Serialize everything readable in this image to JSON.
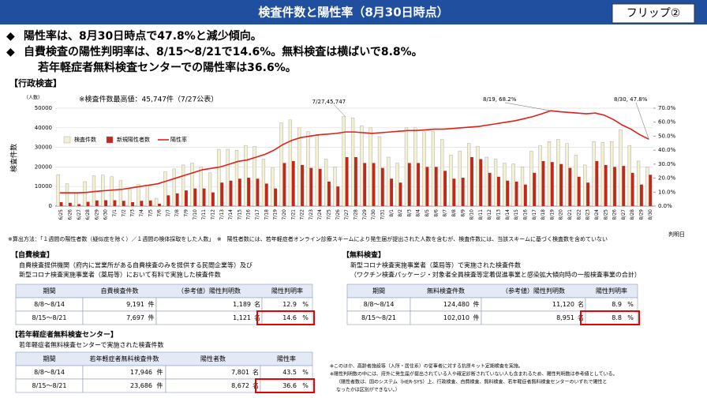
{
  "header": {
    "title": "検査件数と陽性率（8月30日時点）",
    "flip": "フリップ②"
  },
  "bullets": [
    "陽性率は、8月30日時点で47.8%と減少傾向。",
    "自費検査の陽性判明率は、8/15～8/21で14.6%。無料検査は横ばいで8.8%。",
    "若年軽症者無料検査センターでの陽性率は36.6%。"
  ],
  "section": "【行政検査】",
  "chart_data": {
    "type": "bar_line",
    "y_unit": "（人数）",
    "ylabel": "検査件数",
    "xlabel": "判明日",
    "note": "※検査件数最高値：45,747件（7/27公表）",
    "annotations": [
      "7/27,45,747",
      "8/19, 68.2%",
      "8/30, 47.8%"
    ],
    "categories": [
      "6/25",
      "6/26",
      "6/27",
      "6/28",
      "6/29",
      "6/30",
      "7/1",
      "7/2",
      "7/3",
      "7/4",
      "7/5",
      "7/6",
      "7/7",
      "7/8",
      "7/9",
      "7/10",
      "7/11",
      "7/12",
      "7/13",
      "7/14",
      "7/15",
      "7/16",
      "7/17",
      "7/18",
      "7/19",
      "7/20",
      "7/21",
      "7/22",
      "7/23",
      "7/24",
      "7/25",
      "7/26",
      "7/27",
      "7/28",
      "7/29",
      "7/30",
      "7/31",
      "8/1",
      "8/2",
      "8/3",
      "8/4",
      "8/5",
      "8/6",
      "8/7",
      "8/8",
      "8/9",
      "8/10",
      "8/11",
      "8/12",
      "8/13",
      "8/14",
      "8/15",
      "8/16",
      "8/17",
      "8/18",
      "8/19",
      "8/20",
      "8/21",
      "8/22",
      "8/23",
      "8/24",
      "8/25",
      "8/26",
      "8/27",
      "8/28",
      "8/29",
      "8/30"
    ],
    "series": [
      {
        "name": "検査件数",
        "color": "#f4f0d2",
        "values": [
          16000,
          11500,
          7000,
          12500,
          15500,
          15800,
          15000,
          13000,
          8500,
          11000,
          10500,
          4000,
          17500,
          19000,
          21000,
          22000,
          20000,
          17000,
          29000,
          29000,
          28500,
          31000,
          30500,
          24000,
          19500,
          42500,
          44000,
          40000,
          38000,
          36000,
          24000,
          20000,
          45747,
          45000,
          41000,
          40000,
          35500,
          25000,
          22000,
          40000,
          40000,
          38000,
          38000,
          34000,
          26000,
          28000,
          32000,
          30500,
          25000,
          24000,
          22000,
          21500,
          20000,
          28000,
          31000,
          33000,
          34000,
          32000,
          26000,
          21000,
          33000,
          32500,
          33000,
          39000,
          31000,
          23000,
          20000
        ]
      },
      {
        "name": "新規陽性者数",
        "color": "#c0281e",
        "values": [
          2000,
          1700,
          1000,
          2200,
          2900,
          3000,
          3000,
          2700,
          2000,
          2700,
          2900,
          1200,
          5500,
          6500,
          8000,
          9000,
          9000,
          7000,
          12000,
          13000,
          14000,
          14500,
          14000,
          11500,
          9000,
          22000,
          23000,
          21000,
          19500,
          19000,
          12500,
          10000,
          25000,
          25000,
          22000,
          22000,
          19500,
          14000,
          12000,
          22000,
          22000,
          20000,
          20000,
          18000,
          14000,
          14500,
          25000,
          24000,
          17000,
          15000,
          13000,
          12500,
          11000,
          17000,
          23000,
          22500,
          21500,
          19500,
          15000,
          12000,
          23000,
          21000,
          20000,
          20500,
          17000,
          11000,
          16000
        ]
      },
      {
        "name": "陽性率",
        "color": "#e0201a",
        "axis": "y2",
        "values": [
          9.5,
          9.5,
          9.5,
          9.8,
          10.5,
          11,
          11.5,
          12,
          13,
          14,
          15,
          16,
          18,
          20,
          22,
          24,
          26,
          27,
          28,
          30,
          32,
          33,
          35,
          37,
          40,
          44,
          47,
          49,
          50,
          51,
          51.5,
          52,
          53,
          53,
          52.5,
          52,
          52.5,
          53,
          53.5,
          54,
          54,
          54.5,
          55,
          55,
          55.5,
          56,
          56.5,
          57,
          58,
          59,
          60,
          61,
          62.5,
          64,
          66,
          68.2,
          67.5,
          67,
          66.5,
          66,
          66.5,
          65,
          62,
          58,
          55,
          51,
          47.8
        ]
      }
    ],
    "ylim": [
      0,
      50000
    ],
    "yticks": [
      0,
      10000,
      20000,
      30000,
      40000,
      50000
    ],
    "y2lim": [
      0,
      70
    ],
    "y2ticks": [
      {
        "value": 0,
        "label": "0.0%"
      },
      {
        "value": 10,
        "label": "10.0%"
      },
      {
        "value": 20,
        "label": "20.0%"
      },
      {
        "value": 30,
        "label": "30.0%"
      },
      {
        "value": 40,
        "label": "40.0%"
      },
      {
        "value": 50,
        "label": "50.0%"
      },
      {
        "value": 60,
        "label": "60.0%"
      },
      {
        "value": 70,
        "label": "70.0%"
      }
    ],
    "grid": true
  },
  "footnote": "※算出方法：「１週間の陽性者数（疑似症を除く）／１週間の検体採取をした人数」　※　陽性者数には、若年軽症者オンライン診療スキームにより発生届が提出された人数を含むが、検査件数には、当該スキームに基づく検査数を含めていない",
  "tables": [
    {
      "title": "【自費検査】",
      "desc": [
        "自費検査提供機関（府内に営業所がある自費検査のみを提供する民間企業等）及び",
        "新型コロナ検査実施事業者（薬局等）において有料で実施した検査件数"
      ],
      "header": [
        "期間",
        "自費検査件数",
        "（参考値）陽性判明数",
        "陽性判明率"
      ],
      "rows": [
        [
          "8/8～8/14",
          "9,191",
          "件",
          "1,189",
          "名",
          "12.9",
          "%"
        ],
        [
          "8/15～8/21",
          "7,697",
          "件",
          "1,121",
          "名",
          "14.6",
          "%"
        ]
      ]
    },
    {
      "title": "【無料検査】",
      "desc": [
        "新型コロナ検査実施事業者（薬局等）で実施された検査件数",
        "（ワクチン検査パッケージ・対象者全員検査等定着促進事業と感染拡大傾向時の一般検査事業の合計）"
      ],
      "header": [
        "期間",
        "無料検査件数",
        "（参考値）陽性判明数",
        "陽性判明率"
      ],
      "rows": [
        [
          "8/8～8/14",
          "124,480",
          "件",
          "11,120",
          "名",
          "8.9",
          "%"
        ],
        [
          "8/15～8/21",
          "102,010",
          "件",
          "8,951",
          "名",
          "8.8",
          "%"
        ]
      ]
    },
    {
      "title": "【若年軽症者無料検査センター】",
      "desc": [
        "若年軽症者無料検査センターで実施された検査件数"
      ],
      "header": [
        "期間",
        "若年軽症者無料検査件数",
        "陽性者数",
        "陽性率"
      ],
      "rows": [
        [
          "8/8～8/14",
          "17,946",
          "件",
          "7,801",
          "名",
          "43.5",
          "%"
        ],
        [
          "8/15～8/21",
          "23,686",
          "件",
          "8,672",
          "名",
          "36.6",
          "%"
        ]
      ]
    }
  ],
  "notes": [
    "※このほか、高齢者施設等（入所・居住系）の従事者に対する抗原キット定期検査を実施。",
    "※陽性判明数の中には、府外に発生届が提出されている人や確定診断されていない人も含まれるため、陽性判明数は参考値としている。",
    "（陽性者数は、国のシステム（HER-SYS）上、行政検査、自費検査、無料検査、若年軽症者無料検査センターのいずれで陽性と",
    "なったかは区別ができない。）"
  ]
}
